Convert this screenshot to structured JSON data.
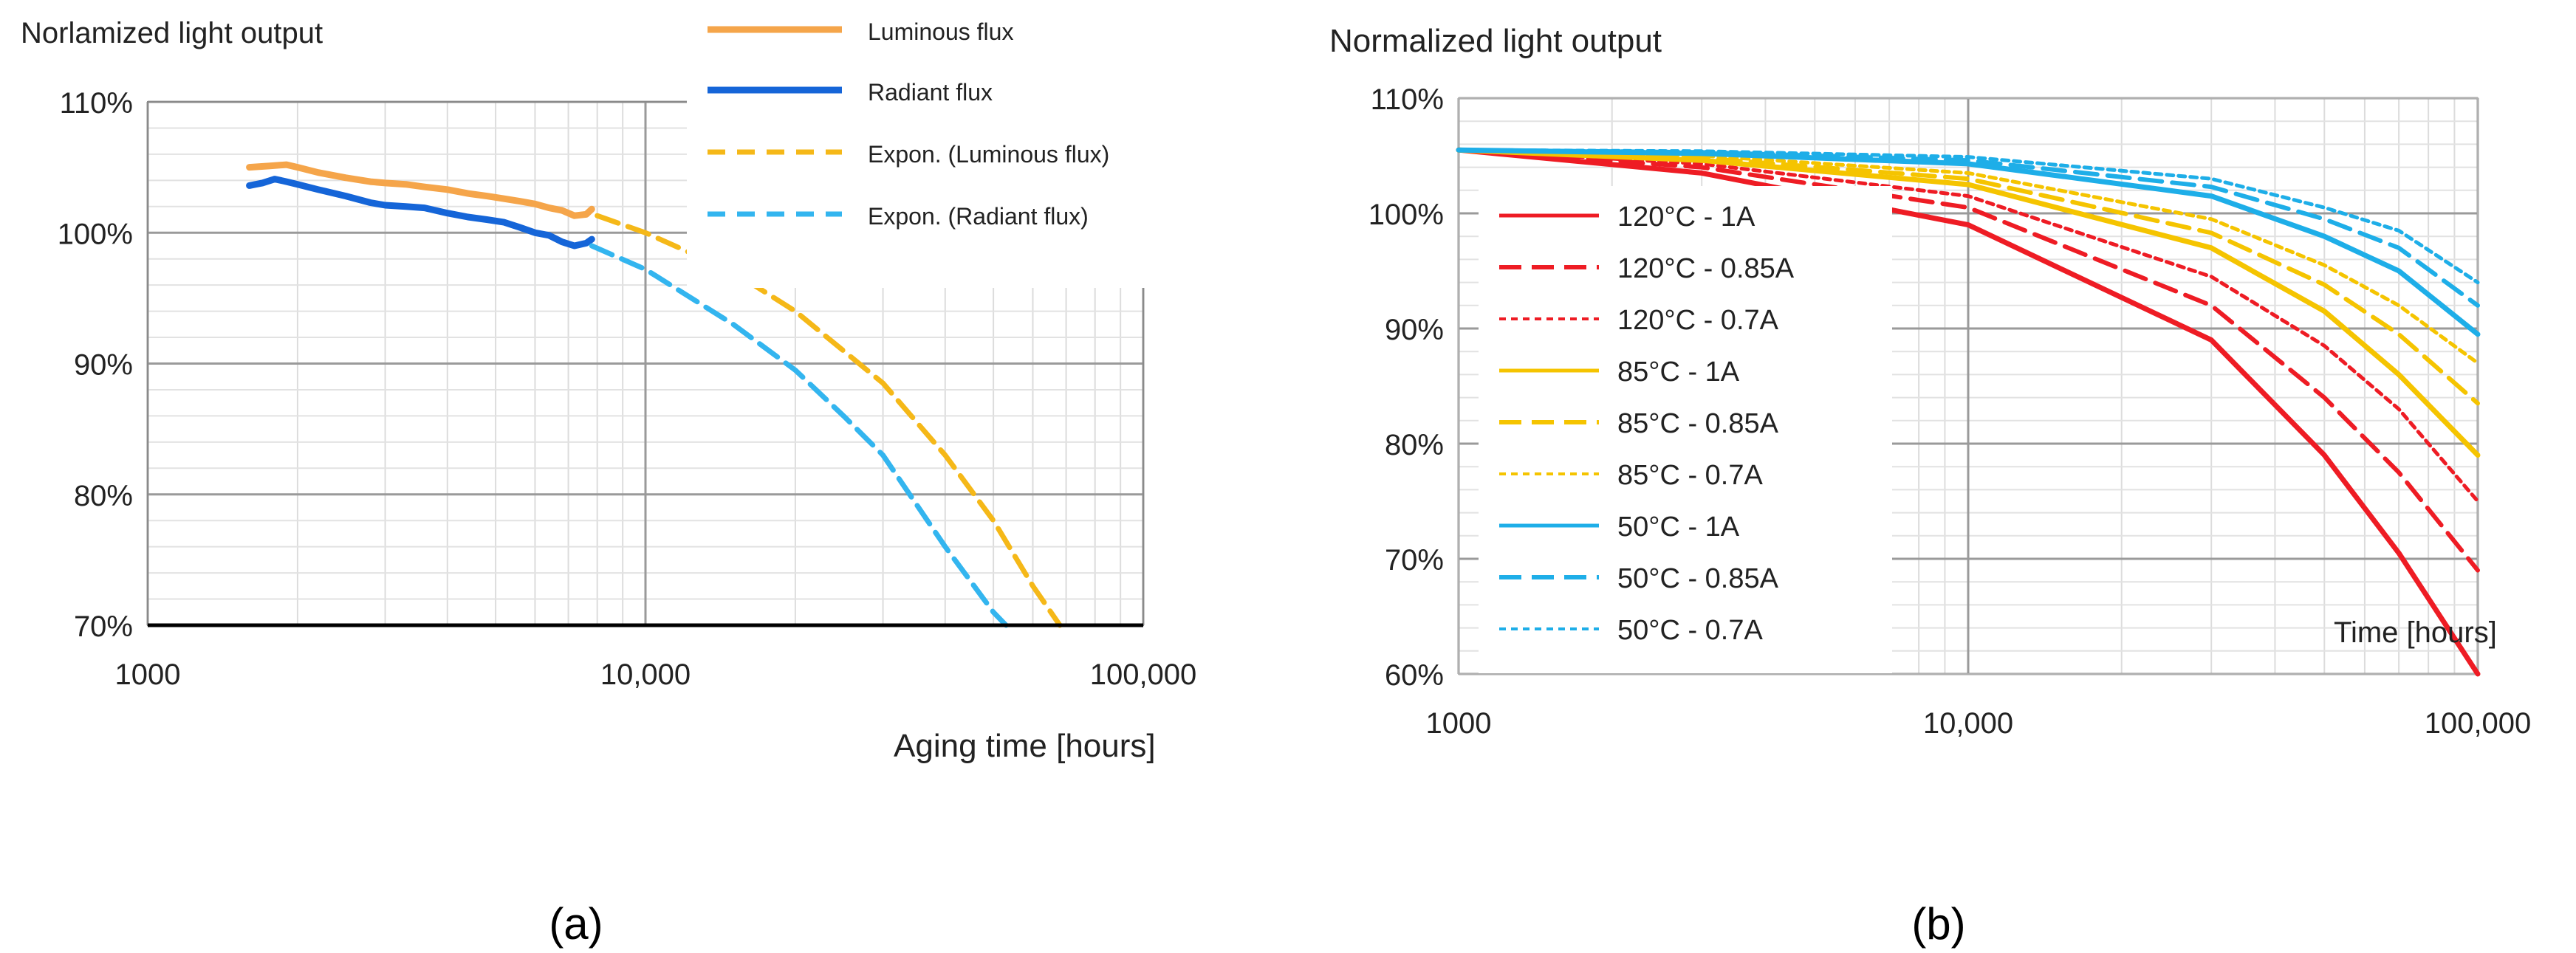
{
  "chart_data": [
    {
      "type": "line",
      "panel_label": "(a)",
      "title": "Norlamized light output",
      "xlabel": "Aging time [hours]",
      "ylabel": "",
      "xscale": "log",
      "xlim": [
        1000,
        100000
      ],
      "ylim": [
        70,
        110
      ],
      "x_ticks": [
        1000,
        10000,
        100000
      ],
      "x_tick_labels": [
        "1000",
        "10,000",
        "100,000"
      ],
      "y_ticks": [
        70,
        80,
        90,
        100,
        110
      ],
      "y_tick_labels": [
        "70%",
        "80%",
        "90%",
        "100%",
        "110%"
      ],
      "grid": true,
      "legend_position": "top-right",
      "series": [
        {
          "name": "Luminous flux",
          "color": "#f5a54a",
          "style": "solid",
          "x": [
            1600,
            1750,
            1900,
            2000,
            2200,
            2500,
            2800,
            3000,
            3300,
            3600,
            4000,
            4400,
            4800,
            5200,
            5600,
            6000,
            6400,
            6800,
            7200,
            7600,
            7800
          ],
          "values": [
            105.0,
            105.1,
            105.2,
            105.0,
            104.6,
            104.2,
            103.9,
            103.8,
            103.7,
            103.5,
            103.3,
            103.0,
            102.8,
            102.6,
            102.4,
            102.2,
            101.9,
            101.7,
            101.3,
            101.4,
            101.8
          ]
        },
        {
          "name": "Radiant flux",
          "color": "#1565d8",
          "style": "solid",
          "x": [
            1600,
            1700,
            1800,
            1900,
            2000,
            2200,
            2500,
            2800,
            3000,
            3300,
            3600,
            4000,
            4400,
            4800,
            5200,
            5600,
            6000,
            6400,
            6800,
            7200,
            7600,
            7800
          ],
          "values": [
            103.6,
            103.8,
            104.1,
            103.9,
            103.7,
            103.3,
            102.8,
            102.3,
            102.1,
            102.0,
            101.9,
            101.5,
            101.2,
            101.0,
            100.8,
            100.4,
            100.0,
            99.8,
            99.3,
            99.0,
            99.2,
            99.5
          ]
        },
        {
          "name": "Expon. (Luminous flux)",
          "color": "#f5b818",
          "style": "dash",
          "x": [
            8000,
            10000,
            15000,
            20000,
            30000,
            40000,
            50000,
            60000,
            68000
          ],
          "values": [
            101.3,
            100.0,
            97.0,
            94.0,
            88.5,
            83.0,
            78.0,
            73.0,
            70.0
          ]
        },
        {
          "name": "Expon. (Radiant flux)",
          "color": "#33b5ef",
          "style": "dash",
          "x": [
            7800,
            10000,
            15000,
            20000,
            25000,
            30000,
            40000,
            50000,
            53000
          ],
          "values": [
            99.0,
            97.2,
            93.0,
            89.5,
            86.0,
            83.0,
            76.0,
            71.0,
            70.0
          ]
        }
      ]
    },
    {
      "type": "line",
      "panel_label": "(b)",
      "title": "Normalized light output",
      "xlabel": "Time [hours]",
      "ylabel": "",
      "xscale": "log",
      "xlim": [
        1000,
        100000
      ],
      "ylim": [
        60,
        110
      ],
      "x_ticks": [
        1000,
        10000,
        100000
      ],
      "x_tick_labels": [
        "1000",
        "10,000",
        "100,000"
      ],
      "y_ticks": [
        60,
        70,
        80,
        90,
        100,
        110
      ],
      "y_tick_labels": [
        "60%",
        "70%",
        "80%",
        "90%",
        "100%",
        "110%"
      ],
      "grid": true,
      "legend_position": "left",
      "series": [
        {
          "name": "120°C - 1A",
          "color": "#ee1c24",
          "style": "solid",
          "x": [
            1000,
            3000,
            10000,
            30000,
            50000,
            70000,
            100000
          ],
          "values": [
            105.5,
            103.5,
            99.0,
            89.0,
            79.0,
            70.5,
            60.0
          ]
        },
        {
          "name": "120°C - 0.85A",
          "color": "#ee1c24",
          "style": "dash",
          "x": [
            1000,
            3000,
            10000,
            30000,
            50000,
            70000,
            100000
          ],
          "values": [
            105.5,
            104.0,
            100.5,
            92.0,
            84.0,
            77.5,
            69.0
          ]
        },
        {
          "name": "120°C - 0.7A",
          "color": "#ee1c24",
          "style": "dot",
          "x": [
            1000,
            3000,
            10000,
            30000,
            50000,
            70000,
            100000
          ],
          "values": [
            105.5,
            104.3,
            101.5,
            94.5,
            88.5,
            83.0,
            75.0
          ]
        },
        {
          "name": "85°C - 1A",
          "color": "#f5c400",
          "style": "solid",
          "x": [
            1000,
            3000,
            10000,
            30000,
            50000,
            70000,
            100000
          ],
          "values": [
            105.5,
            104.6,
            102.5,
            97.0,
            91.5,
            86.0,
            79.0
          ]
        },
        {
          "name": "85°C - 0.85A",
          "color": "#f5c400",
          "style": "dash",
          "x": [
            1000,
            3000,
            10000,
            30000,
            50000,
            70000,
            100000
          ],
          "values": [
            105.5,
            104.8,
            103.0,
            98.3,
            93.8,
            89.5,
            83.5
          ]
        },
        {
          "name": "85°C - 0.7A",
          "color": "#f5c400",
          "style": "dot",
          "x": [
            1000,
            3000,
            10000,
            30000,
            50000,
            70000,
            100000
          ],
          "values": [
            105.5,
            105.0,
            103.5,
            99.5,
            95.5,
            92.0,
            87.0
          ]
        },
        {
          "name": "50°C - 1A",
          "color": "#1eaee8",
          "style": "solid",
          "x": [
            1000,
            3000,
            10000,
            30000,
            50000,
            70000,
            100000
          ],
          "values": [
            105.5,
            105.2,
            104.3,
            101.5,
            98.0,
            95.0,
            89.5
          ]
        },
        {
          "name": "50°C - 0.85A",
          "color": "#1eaee8",
          "style": "dash",
          "x": [
            1000,
            3000,
            10000,
            30000,
            50000,
            70000,
            100000
          ],
          "values": [
            105.5,
            105.3,
            104.6,
            102.3,
            99.5,
            97.0,
            92.0
          ]
        },
        {
          "name": "50°C - 0.7A",
          "color": "#1eaee8",
          "style": "dot",
          "x": [
            1000,
            3000,
            10000,
            30000,
            50000,
            70000,
            100000
          ],
          "values": [
            105.5,
            105.4,
            104.9,
            103.0,
            100.5,
            98.5,
            94.0
          ]
        }
      ]
    }
  ]
}
